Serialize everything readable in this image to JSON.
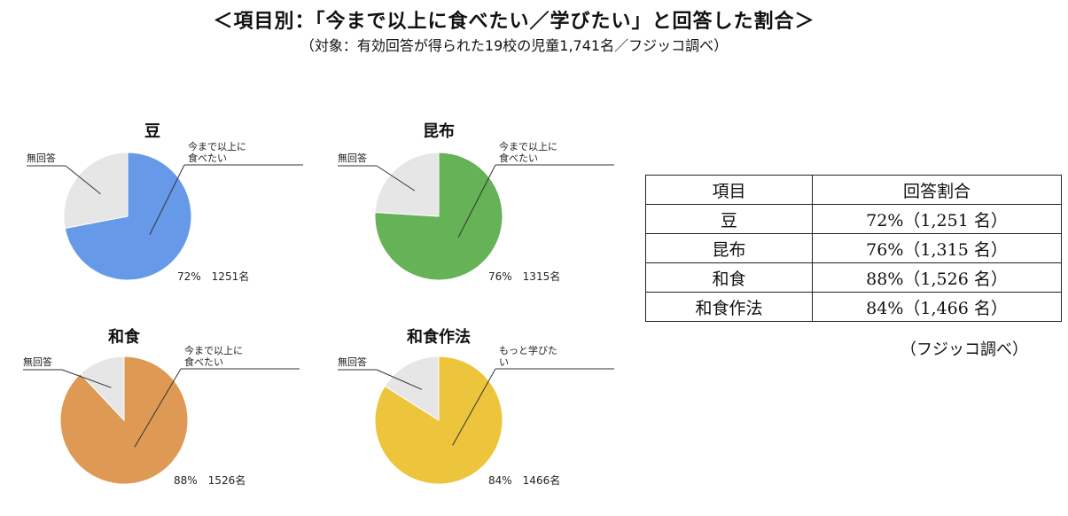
{
  "header": {
    "title": "＜項目別：「今まで以上に食べたい／学びたい」と回答した割合＞",
    "subtitle": "（対象：有効回答が得られた19校の児童1,741名／フジッコ調べ）"
  },
  "chart_data": [
    {
      "type": "pie",
      "title": "豆",
      "slices": [
        {
          "name": "今まで以上に食べたい",
          "value": 72,
          "color": "#6699e8"
        },
        {
          "name": "無回答",
          "value": 28,
          "color": "#e6e6e6"
        }
      ],
      "value_label": "72%　1251名"
    },
    {
      "type": "pie",
      "title": "昆布",
      "slices": [
        {
          "name": "今まで以上に食べたい",
          "value": 76,
          "color": "#66b256"
        },
        {
          "name": "無回答",
          "value": 24,
          "color": "#e6e6e6"
        }
      ],
      "value_label": "76%　1315名"
    },
    {
      "type": "pie",
      "title": "和食",
      "slices": [
        {
          "name": "今まで以上に食べたい",
          "value": 88,
          "color": "#de9a55"
        },
        {
          "name": "無回答",
          "value": 12,
          "color": "#e6e6e6"
        }
      ],
      "value_label": "88%　1526名"
    },
    {
      "type": "pie",
      "title": "和食作法",
      "slices": [
        {
          "name": "もっと学びたい",
          "value": 84,
          "color": "#ecc53c"
        },
        {
          "name": "無回答",
          "value": 16,
          "color": "#e6e6e6"
        }
      ],
      "value_label": "84%　1466名"
    }
  ],
  "table": {
    "headers": [
      "項目",
      "回答割合"
    ],
    "rows": [
      [
        "豆",
        "72%（1,251 名）"
      ],
      [
        "昆布",
        "76%（1,315 名）"
      ],
      [
        "和食",
        "88%（1,526 名）"
      ],
      [
        "和食作法",
        "84%（1,466 名）"
      ]
    ]
  },
  "source": "（フジッコ調べ）"
}
